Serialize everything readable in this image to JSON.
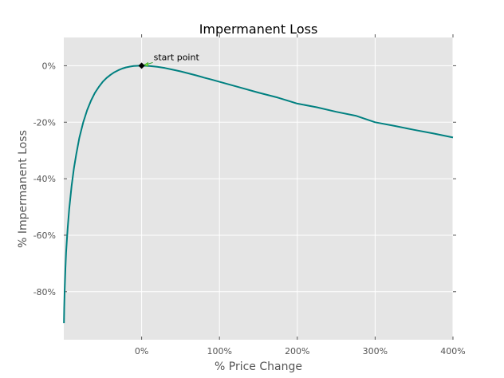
{
  "chart_data": {
    "type": "line",
    "title": "Impermanent Loss",
    "xlabel": "% Price Change",
    "ylabel": "% Impermanent Loss",
    "xlim": [
      -100,
      400
    ],
    "ylim": [
      -97,
      10
    ],
    "grid": true,
    "x_ticks": [
      {
        "value": 0,
        "label": "0%"
      },
      {
        "value": 100,
        "label": "100%"
      },
      {
        "value": 200,
        "label": "200%"
      },
      {
        "value": 300,
        "label": "300%"
      },
      {
        "value": 400,
        "label": "400%"
      }
    ],
    "y_ticks": [
      {
        "value": 0,
        "label": "0%"
      },
      {
        "value": -20,
        "label": "-20%"
      },
      {
        "value": -40,
        "label": "-40%"
      },
      {
        "value": -60,
        "label": "-60%"
      },
      {
        "value": -80,
        "label": "-80%"
      }
    ],
    "series": [
      {
        "color": "#008080",
        "x": [
          -99.8,
          -99.5,
          -99,
          -98,
          -97,
          -96,
          -95,
          -93,
          -90,
          -87,
          -84,
          -80,
          -75,
          -70,
          -65,
          -60,
          -55,
          -50,
          -45,
          -40,
          -35,
          -30,
          -25,
          -20,
          -15,
          -10,
          -5,
          0,
          5,
          10,
          20,
          30,
          40,
          50,
          60,
          70,
          80,
          90,
          100,
          125,
          150,
          175,
          200,
          225,
          250,
          275,
          300,
          325,
          350,
          375,
          400
        ],
        "y": [
          -91.1,
          -85.9,
          -80.2,
          -72.0,
          -66.0,
          -61.5,
          -57.4,
          -50.7,
          -42.5,
          -36.3,
          -31.4,
          -25.5,
          -20.0,
          -15.7,
          -12.3,
          -9.6,
          -7.5,
          -5.7,
          -4.3,
          -3.2,
          -2.3,
          -1.6,
          -1.0,
          -0.6,
          -0.3,
          -0.1,
          -0.03,
          0.0,
          -0.03,
          -0.1,
          -0.4,
          -0.8,
          -1.4,
          -2.0,
          -2.7,
          -3.4,
          -4.2,
          -4.9,
          -5.7,
          -7.6,
          -9.5,
          -11.3,
          -13.4,
          -14.7,
          -16.3,
          -17.7,
          -20.0,
          -21.3,
          -22.7,
          -24.0,
          -25.4
        ]
      }
    ],
    "annotations": [
      {
        "text": "start point",
        "x": 0,
        "y": 0
      }
    ]
  }
}
